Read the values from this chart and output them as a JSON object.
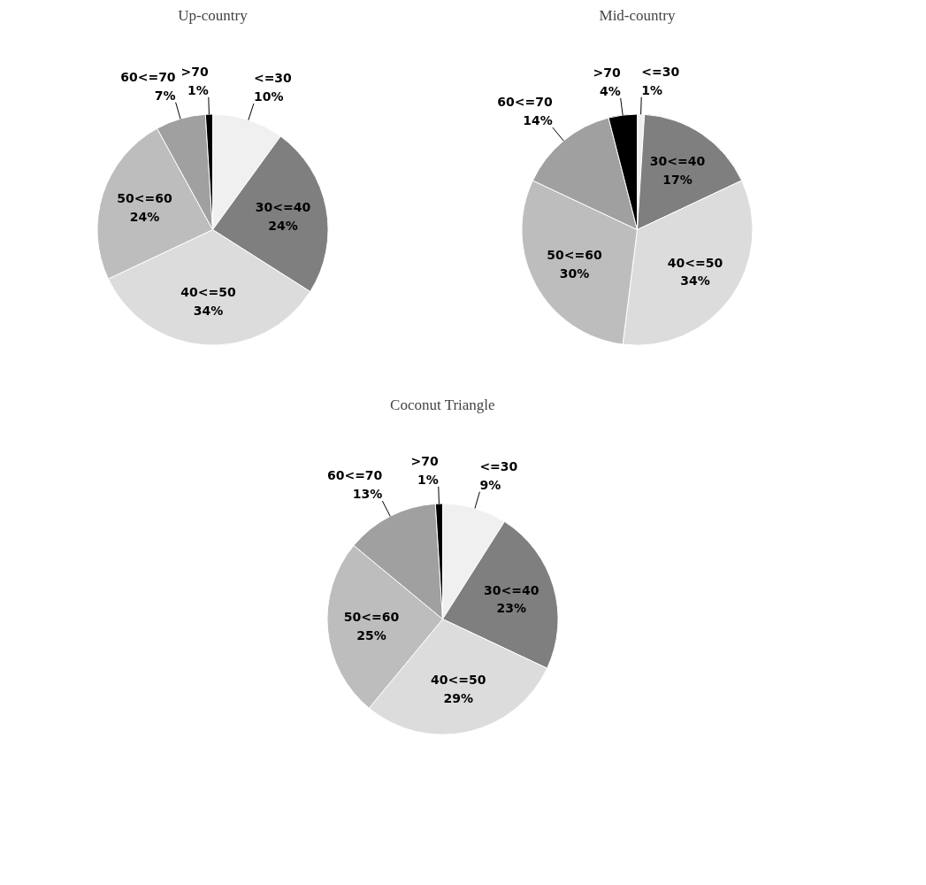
{
  "chart_data": [
    {
      "type": "pie",
      "title": "Up-country",
      "categories": [
        "<=30",
        "30<=40",
        "40<=50",
        "50<=60",
        "60<=70",
        ">70"
      ],
      "values": [
        10,
        24,
        34,
        24,
        7,
        1
      ],
      "value_labels": [
        "10%",
        "24%",
        "34%",
        "24%",
        "7%",
        "1%"
      ],
      "colors": [
        "#f0f0f0",
        "#7f7f7f",
        "#dcdcdc",
        "#bdbdbd",
        "#a0a0a0",
        "#000000"
      ]
    },
    {
      "type": "pie",
      "title": "Mid-country",
      "categories": [
        "<=30",
        "30<=40",
        "40<=50",
        "50<=60",
        "60<=70",
        ">70"
      ],
      "values": [
        1,
        17,
        34,
        30,
        14,
        4
      ],
      "value_labels": [
        "1%",
        "17%",
        "34%",
        "30%",
        "14%",
        "4%"
      ],
      "colors": [
        "#f0f0f0",
        "#7f7f7f",
        "#dcdcdc",
        "#bdbdbd",
        "#a0a0a0",
        "#000000"
      ]
    },
    {
      "type": "pie",
      "title": "Coconut Triangle",
      "categories": [
        "<=30",
        "30<=40",
        "40<=50",
        "50<=60",
        "60<=70",
        ">70"
      ],
      "values": [
        9,
        23,
        29,
        25,
        13,
        1
      ],
      "value_labels": [
        "9%",
        "23%",
        "29%",
        "25%",
        "13%",
        "1%"
      ],
      "colors": [
        "#f0f0f0",
        "#7f7f7f",
        "#dcdcdc",
        "#bdbdbd",
        "#a0a0a0",
        "#000000"
      ]
    }
  ]
}
